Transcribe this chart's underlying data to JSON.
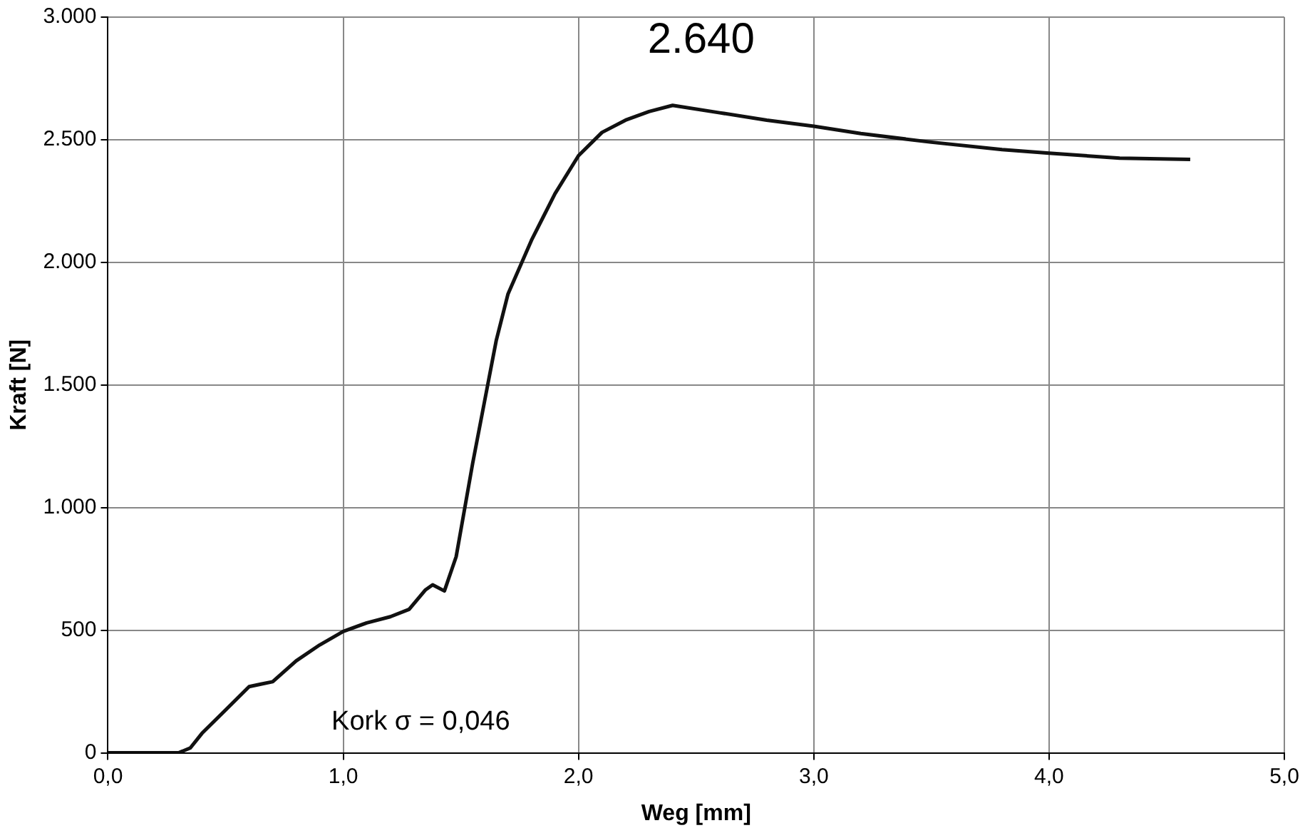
{
  "chart_data": {
    "type": "line",
    "xlabel": "Weg [mm]",
    "ylabel": "Kraft [N]",
    "x": [
      0,
      0.3,
      0.35,
      0.4,
      0.5,
      0.6,
      0.65,
      0.7,
      0.8,
      0.9,
      1.0,
      1.1,
      1.2,
      1.28,
      1.35,
      1.38,
      1.43,
      1.48,
      1.55,
      1.6,
      1.65,
      1.7,
      1.8,
      1.9,
      2.0,
      2.1,
      2.2,
      2.3,
      2.4,
      2.6,
      2.8,
      3.0,
      3.2,
      3.5,
      3.8,
      4.0,
      4.3,
      4.6
    ],
    "series": [
      {
        "color": "#111111",
        "values": [
          0,
          0,
          20,
          80,
          175,
          270,
          280,
          290,
          375,
          440,
          495,
          530,
          555,
          585,
          665,
          685,
          660,
          800,
          1180,
          1430,
          1680,
          1870,
          2090,
          2280,
          2435,
          2530,
          2580,
          2615,
          2640,
          2610,
          2580,
          2555,
          2525,
          2490,
          2460,
          2445,
          2425,
          2420
        ]
      }
    ],
    "xlim": [
      0,
      5
    ],
    "ylim": [
      0,
      3000
    ],
    "xticks": [
      {
        "value": 0,
        "label": "0,0"
      },
      {
        "value": 1,
        "label": "1,0"
      },
      {
        "value": 2,
        "label": "2,0"
      },
      {
        "value": 3,
        "label": "3,0"
      },
      {
        "value": 4,
        "label": "4,0"
      },
      {
        "value": 5,
        "label": "5,0"
      }
    ],
    "yticks": [
      0,
      500,
      {
        "value": 1000,
        "label": "1.000"
      },
      {
        "value": 1500,
        "label": "1.500"
      },
      {
        "value": 2000,
        "label": "2.000"
      },
      {
        "value": 2500,
        "label": "2.500"
      },
      {
        "value": 3000,
        "label": "3.000"
      }
    ],
    "grid": true,
    "marker": "none",
    "line_style": "solid",
    "legend": false,
    "annotations": [
      {
        "text": "2.640",
        "x": 2.4,
        "y": 2640
      },
      "Kork σ = 0,046"
    ]
  }
}
